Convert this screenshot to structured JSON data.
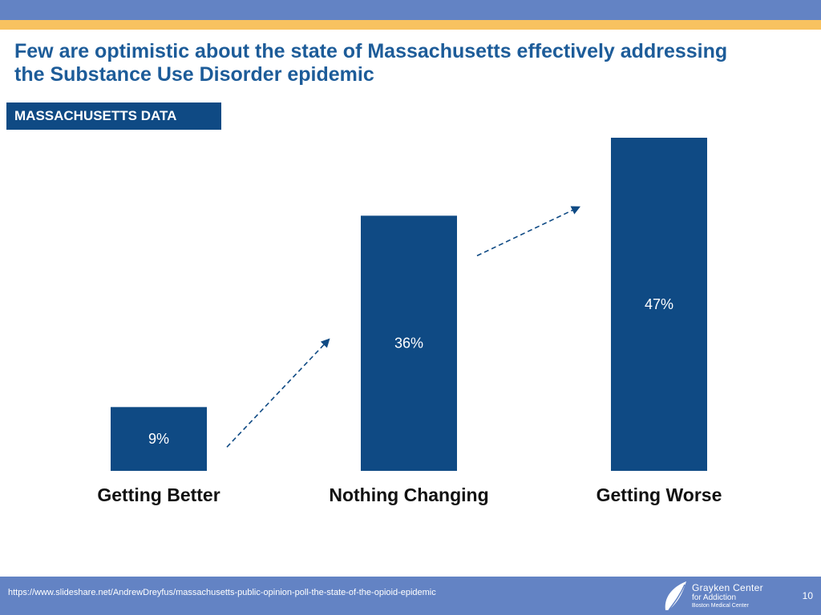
{
  "header": {
    "title_line1": "Few are optimistic about the state of Massachusetts effectively addressing",
    "title_line2": "the Substance Use Disorder epidemic",
    "badge": "MASSACHUSETTS DATA"
  },
  "chart_data": {
    "type": "bar",
    "categories": [
      "Getting Better",
      "Nothing Changing",
      "Getting Worse"
    ],
    "values": [
      9,
      36,
      47
    ],
    "data_labels": [
      "9%",
      "36%",
      "47%"
    ],
    "ylim": [
      0,
      50
    ],
    "grid": false,
    "legend": "none",
    "bar_color": "#0f4a84",
    "annotation": "dashed trend arrows between bars"
  },
  "footer": {
    "source": "https://www.slideshare.net/AndrewDreyfus/massachusetts-public-opinion-poll-the-state-of-the-opioid-epidemic",
    "page_number": "10",
    "logo_line1": "Grayken Center",
    "logo_line2": "for Addiction",
    "logo_line3": "Boston Medical Center"
  },
  "colors": {
    "top_band": "#6383c4",
    "accent_stripe": "#f8c260",
    "title": "#1d5c99",
    "badge_bg": "#0f4a84",
    "footer_bg": "#6383c4"
  }
}
